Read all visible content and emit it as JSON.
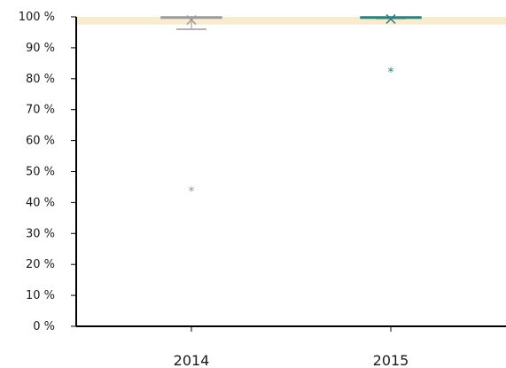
{
  "chart_data": {
    "type": "box",
    "title": "",
    "xlabel": "",
    "ylabel": "",
    "ylim": [
      0,
      100
    ],
    "y_unit": "%",
    "y_ticks": [
      0,
      10,
      20,
      30,
      40,
      50,
      60,
      70,
      80,
      90,
      100
    ],
    "y_tick_labels": [
      "0 %",
      "10 %",
      "20 %",
      "30 %",
      "40 %",
      "50 %",
      "60 %",
      "70 %",
      "80 %",
      "90 %",
      "100 %"
    ],
    "categories": [
      "2014",
      "2015"
    ],
    "target_band": {
      "from": 97.5,
      "to": 100,
      "color": "#f8ecd0"
    },
    "groups": [
      {
        "category": "2014",
        "color": "#9a9a9a",
        "whisker_low": 96,
        "q1": 99.6,
        "median": 99.8,
        "q3": 100,
        "whisker_high": 100,
        "mean": 99,
        "outliers": [
          44
        ]
      },
      {
        "category": "2015",
        "color": "#2e7f7f",
        "whisker_low": 99.5,
        "q1": 99.6,
        "median": 99.8,
        "q3": 100,
        "whisker_high": 100,
        "mean": 99.3,
        "outliers": [
          82.5
        ]
      }
    ],
    "grid": false,
    "legend": "none"
  }
}
